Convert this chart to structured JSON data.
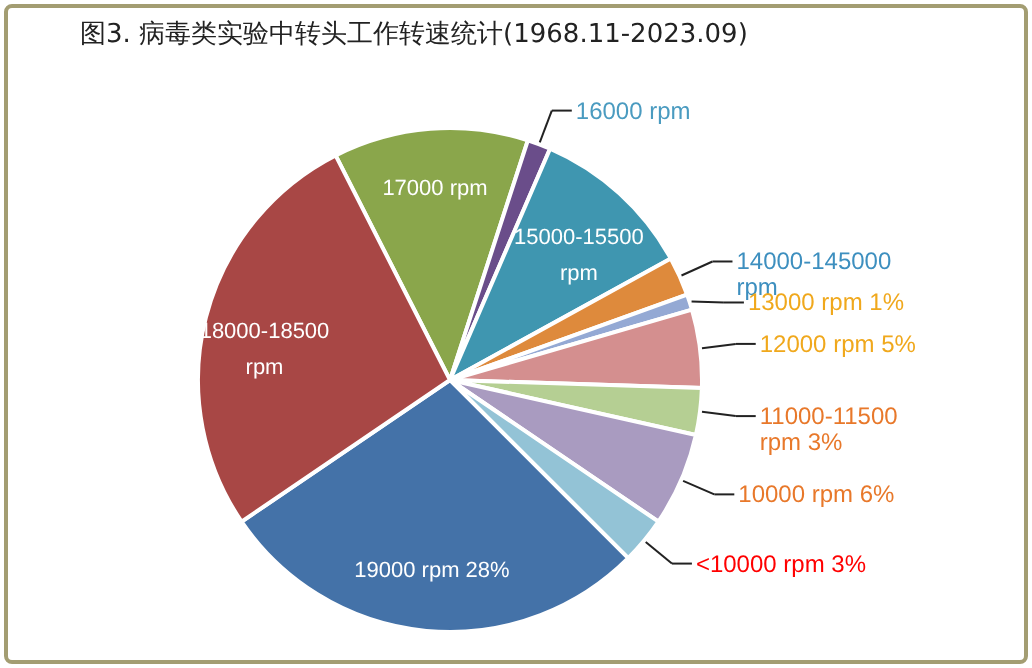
{
  "chart_data": {
    "type": "pie",
    "title": "图3. 病毒类实验中转头工作转速统计(1968.11-2023.09)",
    "categories": [
      "17000 rpm",
      "16000 rpm",
      "15000-15500 rpm",
      "14000-145000 rpm",
      "13000 rpm",
      "12000 rpm",
      "11000-11500 rpm",
      "10000 rpm",
      "<10000 rpm",
      "19000 rpm",
      "18000-18500 rpm"
    ],
    "values": [
      12.5,
      1.5,
      10.5,
      2.5,
      1,
      5,
      3,
      6,
      3,
      28,
      27
    ],
    "value_labels": [
      null,
      null,
      null,
      null,
      "1%",
      "5%",
      "3%",
      "6%",
      "3%",
      "28%",
      null
    ],
    "colors": [
      "#8aa64b",
      "#6a4d8a",
      "#3f96b0",
      "#de8a3c",
      "#94a9d4",
      "#d48f8f",
      "#b5cf93",
      "#a99bc0",
      "#93c3d6",
      "#4472a8",
      "#a84745"
    ],
    "legend": false
  }
}
